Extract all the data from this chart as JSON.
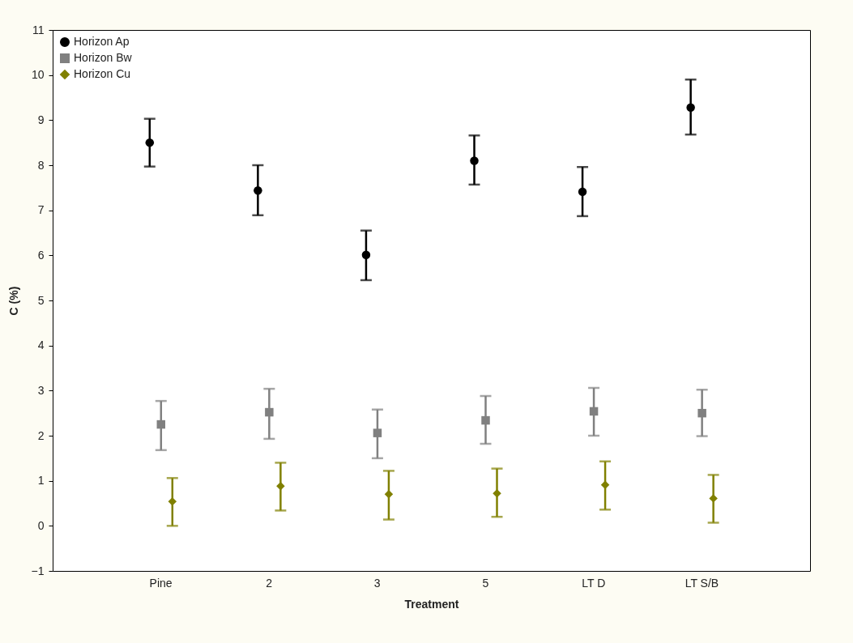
{
  "chart_data": {
    "type": "scatter",
    "xlabel": "Treatment",
    "ylabel": "C (%)",
    "categories": [
      "Pine",
      "2",
      "3",
      "5",
      "LT D",
      "LT S/B"
    ],
    "ylim": [
      -1,
      11
    ],
    "yticks": [
      -1,
      0,
      1,
      2,
      3,
      4,
      5,
      6,
      7,
      8,
      9,
      10,
      11
    ],
    "grid": false,
    "legend": "top left",
    "series": [
      {
        "name": "Horizon Ap",
        "color": "#000000",
        "marker": "circle",
        "values": [
          8.5,
          7.44,
          6.01,
          8.1,
          7.41,
          9.28
        ],
        "errors": [
          [
            7.97,
            9.03
          ],
          [
            6.89,
            8.0
          ],
          [
            5.45,
            6.55
          ],
          [
            7.57,
            8.66
          ],
          [
            6.87,
            7.96
          ],
          [
            8.68,
            9.9
          ]
        ]
      },
      {
        "name": "Horizon Bw",
        "color": "#808080",
        "marker": "square",
        "values": [
          2.25,
          2.52,
          2.06,
          2.34,
          2.54,
          2.5
        ],
        "errors": [
          [
            1.68,
            2.77
          ],
          [
            1.93,
            3.04
          ],
          [
            1.5,
            2.58
          ],
          [
            1.82,
            2.88
          ],
          [
            2.0,
            3.06
          ],
          [
            1.99,
            3.02
          ]
        ]
      },
      {
        "name": "Horizon Cu",
        "color": "#808000",
        "marker": "diamond",
        "values": [
          0.54,
          0.88,
          0.7,
          0.72,
          0.91,
          0.61
        ],
        "errors": [
          [
            0.0,
            1.06
          ],
          [
            0.34,
            1.4
          ],
          [
            0.14,
            1.22
          ],
          [
            0.2,
            1.27
          ],
          [
            0.36,
            1.43
          ],
          [
            0.07,
            1.13
          ]
        ]
      }
    ]
  }
}
